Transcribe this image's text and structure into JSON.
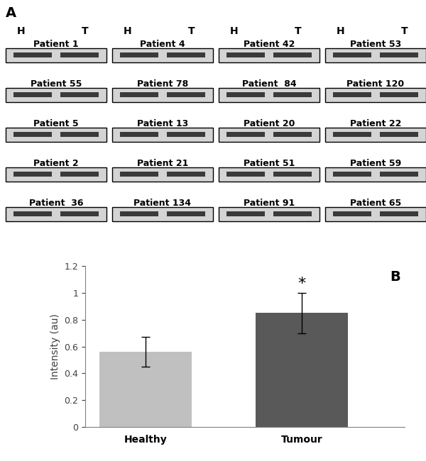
{
  "panel_labels": [
    "A",
    "B"
  ],
  "blot": {
    "lane_labels": [
      "H",
      "T"
    ],
    "patients": [
      [
        "Patient 1",
        "Patient 4",
        "Patient 42",
        "Patient 53"
      ],
      [
        "Patient 55",
        "Patient 78",
        "Patient  84",
        "Patient 120"
      ],
      [
        "Patient 5",
        "Patient 13",
        "Patient 20",
        "Patient 22"
      ],
      [
        "Patient 2",
        "Patient 21",
        "Patient 51",
        "Patient 59"
      ],
      [
        "Patient  36",
        "Patient 134",
        "Patient 91",
        "Patient 65"
      ]
    ]
  },
  "chart_data": {
    "type": "bar",
    "categories": [
      "Healthy",
      "Tumour"
    ],
    "values": [
      0.56,
      0.85
    ],
    "errors": [
      0.11,
      0.15
    ],
    "colors": [
      "#c0c0c0",
      "#595959"
    ],
    "y_label": "Intensity (au)",
    "ylim": [
      0,
      1.2
    ],
    "yticks": [
      0,
      0.2,
      0.4,
      0.6,
      0.8,
      1,
      1.2
    ],
    "annotations": [
      {
        "text": "*",
        "category": "Tumour"
      }
    ]
  }
}
